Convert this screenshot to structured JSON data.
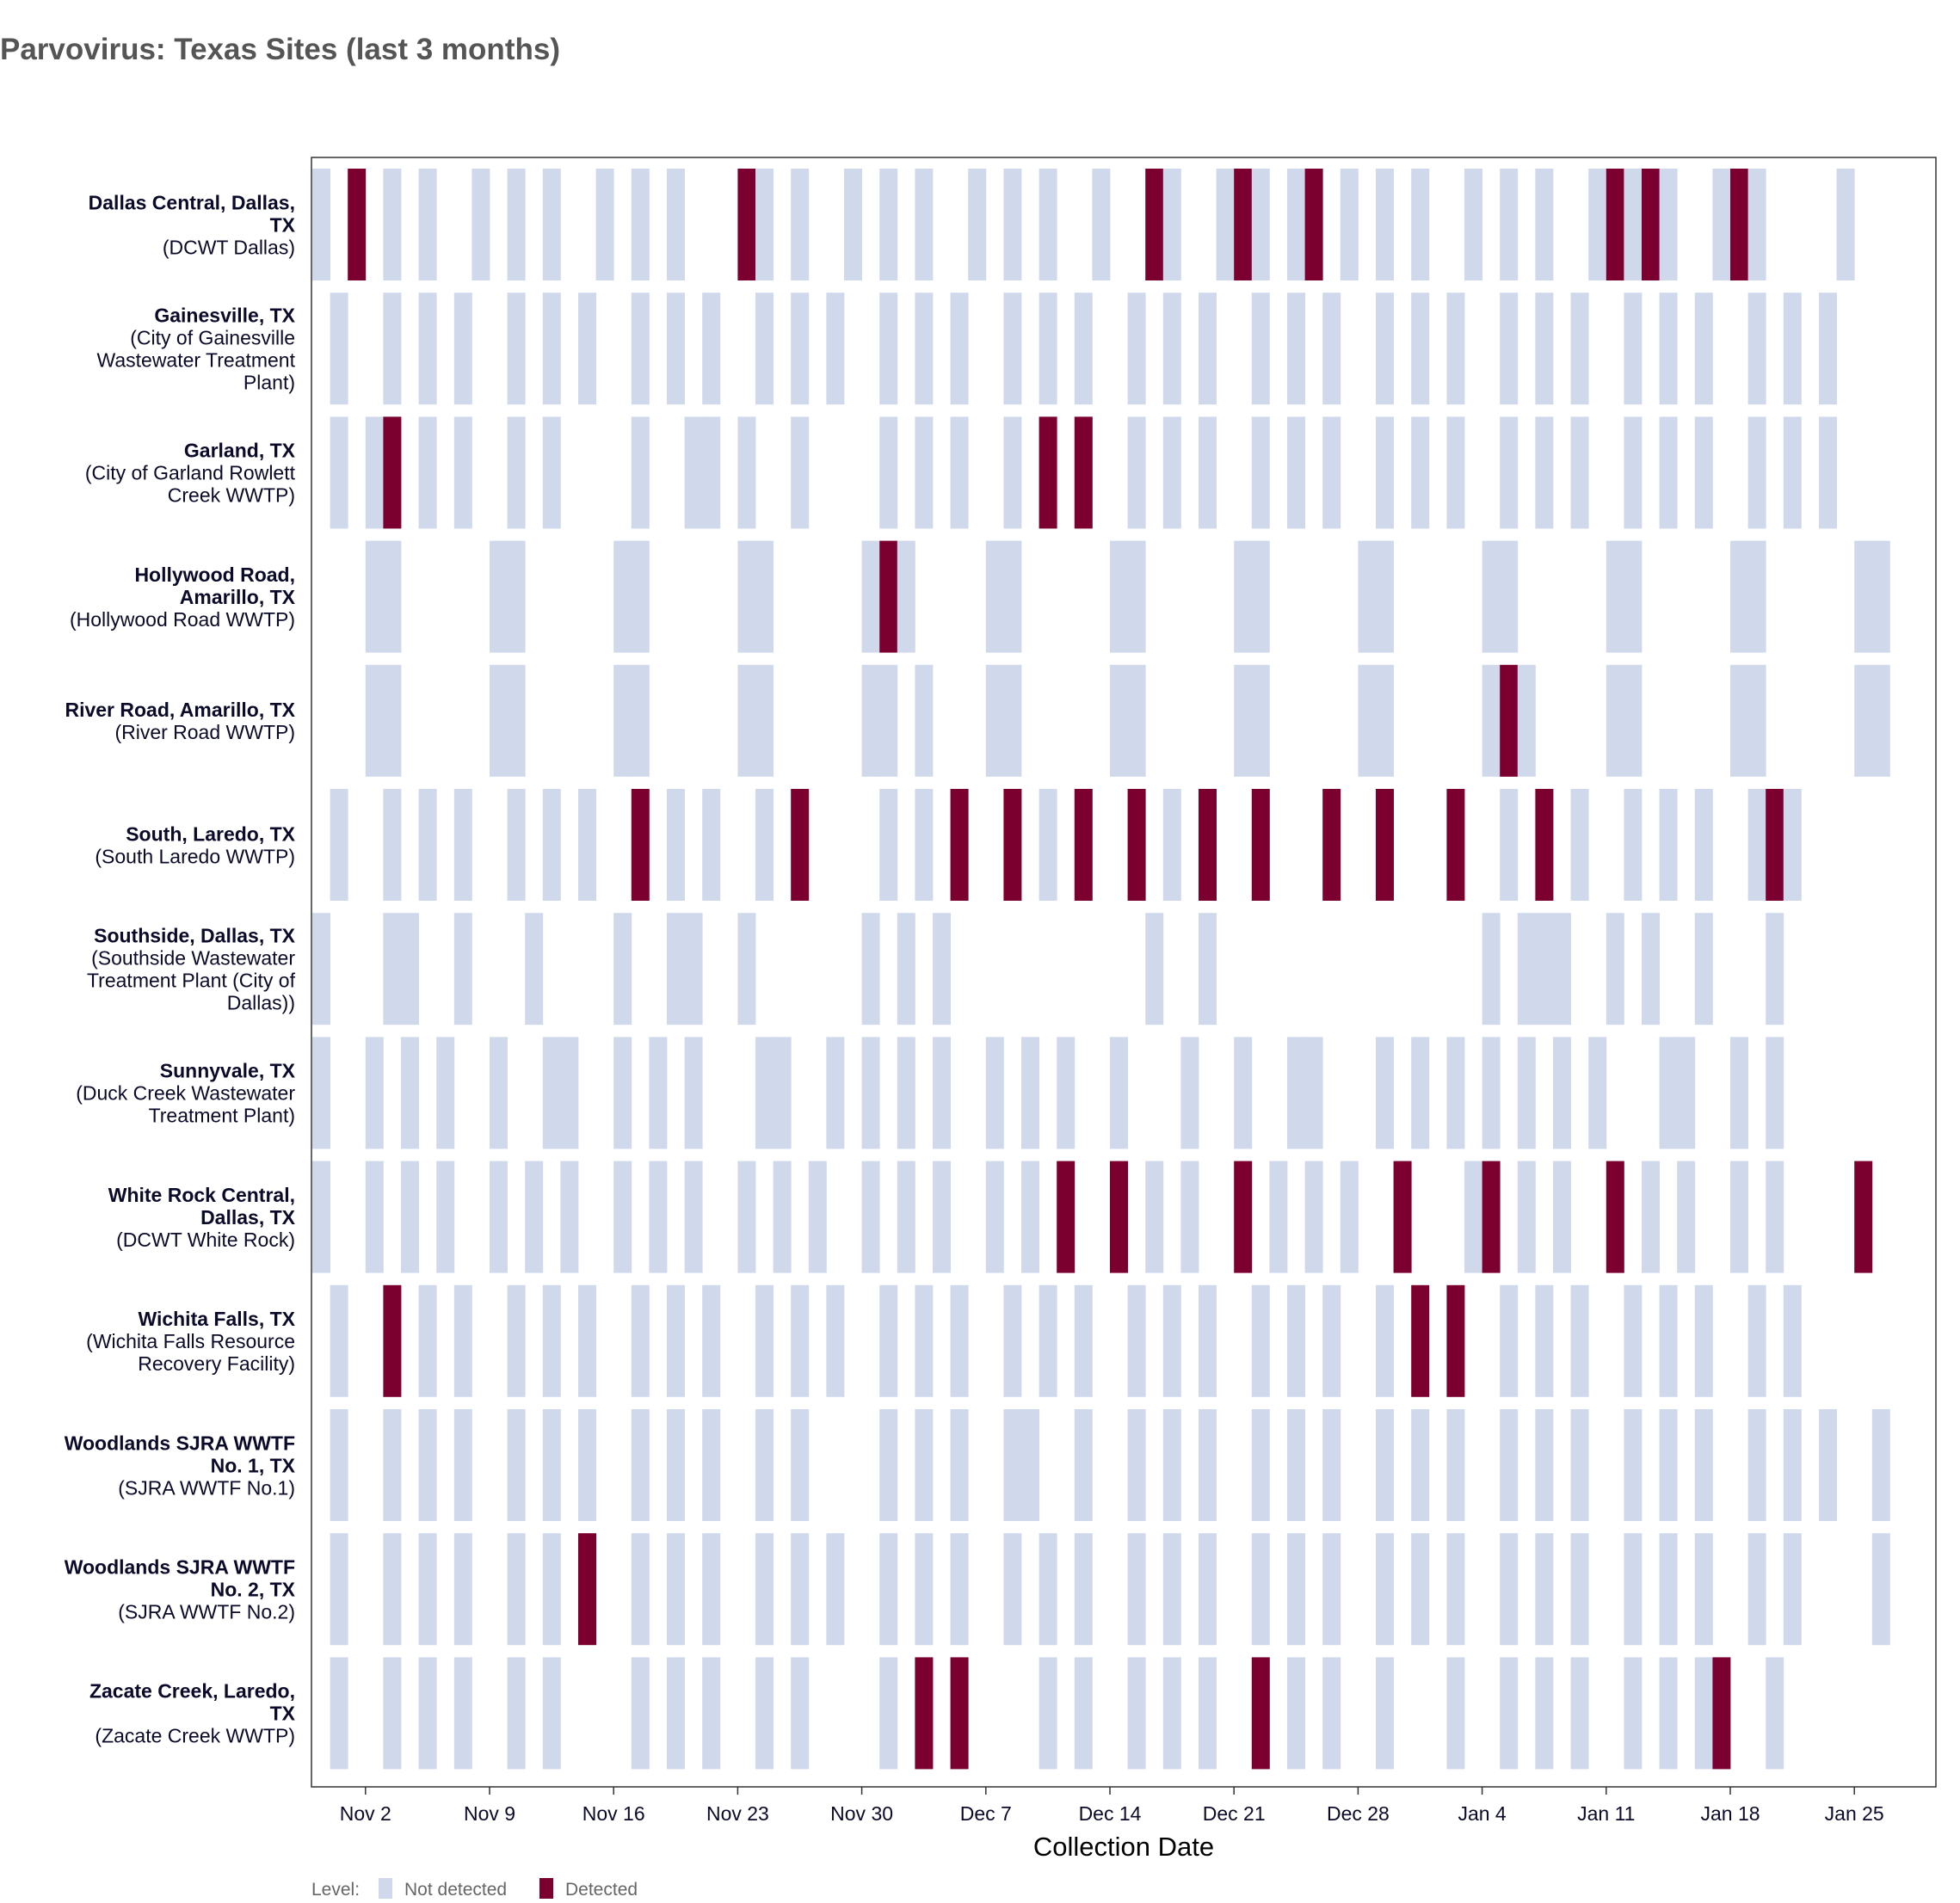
{
  "chart_data": {
    "type": "heatmap",
    "title": "Parvovirus: Texas Sites (last 3 months)",
    "xlabel": "Collection Date",
    "ylabel": "",
    "x_range": [
      "Oct 30",
      "Jan 27"
    ],
    "x_ticks": [
      "Nov 2",
      "Nov 9",
      "Nov 16",
      "Nov 23",
      "Nov 30",
      "Dec 7",
      "Dec 14",
      "Dec 21",
      "Dec 28",
      "Jan 4",
      "Jan 11",
      "Jan 18",
      "Jan 25"
    ],
    "legend": {
      "title": "Level:",
      "position": "bottom-left",
      "items": [
        {
          "label": "Not detected",
          "color": "#d0d8ec"
        },
        {
          "label": "Detected",
          "color": "#7b0030"
        }
      ]
    },
    "series": [
      {
        "name": "Dallas Central, Dallas, TX",
        "name_lines": [
          "Dallas Central, Dallas,",
          "TX"
        ],
        "plant_lines": [
          "(DCWT Dallas)"
        ],
        "days": [
          0,
          2,
          4,
          6,
          9,
          11,
          13,
          16,
          18,
          20,
          25,
          27,
          30,
          32,
          34,
          37,
          39,
          41,
          44,
          48,
          51,
          53,
          55,
          58,
          60,
          62,
          65,
          67,
          69,
          72,
          74,
          76,
          79,
          81,
          86
        ],
        "detected": [
          2,
          24,
          47,
          52,
          56,
          73,
          75,
          80
        ]
      },
      {
        "name": "Gainesville, TX",
        "name_lines": [
          "Gainesville, TX"
        ],
        "plant_lines": [
          "(City of Gainesville",
          "Wastewater Treatment",
          "Plant)"
        ],
        "days": [
          1,
          4,
          6,
          8,
          11,
          13,
          15,
          18,
          20,
          22,
          25,
          27,
          29,
          32,
          34,
          36,
          39,
          41,
          43,
          46,
          48,
          50,
          53,
          55,
          57,
          60,
          62,
          64,
          67,
          69,
          71,
          74,
          76,
          78,
          81,
          83,
          85
        ],
        "detected": []
      },
      {
        "name": "Garland, TX",
        "name_lines": [
          "Garland, TX"
        ],
        "plant_lines": [
          "(City of Garland Rowlett",
          "Creek WWTP)"
        ],
        "days": [
          1,
          3,
          6,
          8,
          11,
          13,
          18,
          21,
          22,
          24,
          27,
          32,
          34,
          36,
          39,
          41,
          43,
          46,
          48,
          50,
          53,
          55,
          57,
          60,
          62,
          64,
          67,
          69,
          71,
          74,
          76,
          78,
          81,
          83,
          85
        ],
        "detected": [
          4,
          41,
          43
        ]
      },
      {
        "name": "Hollywood Road, Amarillo, TX",
        "name_lines": [
          "Hollywood Road,",
          "Amarillo, TX"
        ],
        "plant_lines": [
          "(Hollywood Road WWTP)"
        ],
        "days": [
          3,
          4,
          10,
          11,
          17,
          18,
          24,
          25,
          31,
          33,
          38,
          39,
          45,
          46,
          52,
          53,
          59,
          60,
          66,
          67,
          73,
          74,
          80,
          81,
          87,
          88
        ],
        "detected": [
          32
        ]
      },
      {
        "name": "River Road, Amarillo, TX",
        "name_lines": [
          "River Road, Amarillo, TX"
        ],
        "plant_lines": [
          "(River Road WWTP)"
        ],
        "days": [
          3,
          4,
          10,
          11,
          17,
          18,
          24,
          25,
          31,
          32,
          34,
          38,
          39,
          45,
          46,
          52,
          53,
          59,
          60,
          66,
          68,
          73,
          74,
          80,
          81,
          87,
          88
        ],
        "detected": [
          67
        ]
      },
      {
        "name": "South, Laredo, TX",
        "name_lines": [
          "South, Laredo, TX"
        ],
        "plant_lines": [
          "(South Laredo WWTP)"
        ],
        "days": [
          1,
          4,
          6,
          8,
          11,
          13,
          15,
          20,
          22,
          25,
          32,
          34,
          41,
          46,
          48,
          50,
          53,
          60,
          67,
          71,
          74,
          76,
          78,
          81,
          83
        ],
        "detected": [
          18,
          27,
          36,
          39,
          43,
          46,
          50,
          53,
          57,
          60,
          64,
          69,
          82
        ]
      },
      {
        "name": "Southside, Dallas, TX",
        "name_lines": [
          "Southside, Dallas, TX"
        ],
        "plant_lines": [
          "(Southside Wastewater",
          "Treatment Plant (City of",
          "Dallas))"
        ],
        "days": [
          0,
          4,
          5,
          8,
          12,
          17,
          20,
          21,
          24,
          31,
          33,
          35,
          47,
          50,
          66,
          68,
          69,
          70,
          73,
          75,
          78,
          82
        ],
        "detected": []
      },
      {
        "name": "Sunnyvale, TX",
        "name_lines": [
          "Sunnyvale, TX"
        ],
        "plant_lines": [
          "(Duck Creek Wastewater",
          "Treatment Plant)"
        ],
        "days": [
          0,
          3,
          5,
          7,
          10,
          13,
          14,
          17,
          19,
          21,
          25,
          26,
          29,
          31,
          33,
          35,
          38,
          40,
          42,
          45,
          49,
          52,
          55,
          56,
          60,
          62,
          64,
          66,
          68,
          70,
          72,
          76,
          77,
          80,
          82
        ],
        "detected": []
      },
      {
        "name": "White Rock Central, Dallas, TX",
        "name_lines": [
          "White Rock Central,",
          "Dallas, TX"
        ],
        "plant_lines": [
          "(DCWT White Rock)"
        ],
        "days": [
          0,
          3,
          5,
          7,
          10,
          12,
          14,
          17,
          19,
          21,
          24,
          26,
          28,
          31,
          33,
          35,
          38,
          40,
          45,
          47,
          49,
          54,
          56,
          58,
          61,
          65,
          68,
          70,
          75,
          77,
          80,
          82
        ],
        "detected": [
          42,
          45,
          52,
          61,
          66,
          73,
          87
        ]
      },
      {
        "name": "Wichita Falls, TX",
        "name_lines": [
          "Wichita Falls, TX"
        ],
        "plant_lines": [
          "(Wichita Falls Resource",
          "Recovery Facility)"
        ],
        "days": [
          1,
          6,
          8,
          11,
          13,
          15,
          18,
          20,
          22,
          25,
          27,
          29,
          32,
          34,
          36,
          39,
          41,
          43,
          46,
          48,
          50,
          53,
          55,
          57,
          60,
          62,
          67,
          69,
          71,
          74,
          76,
          78,
          81,
          83
        ],
        "detected": [
          4,
          62,
          64
        ]
      },
      {
        "name": "Woodlands SJRA WWTF No. 1, TX",
        "name_lines": [
          "Woodlands SJRA WWTF",
          "No. 1, TX"
        ],
        "plant_lines": [
          "(SJRA WWTF No.1)"
        ],
        "days": [
          1,
          4,
          6,
          8,
          11,
          13,
          15,
          18,
          20,
          22,
          25,
          27,
          32,
          34,
          36,
          39,
          40,
          43,
          46,
          48,
          50,
          53,
          55,
          57,
          60,
          62,
          64,
          67,
          69,
          71,
          74,
          76,
          78,
          81,
          83,
          85,
          88
        ],
        "detected": []
      },
      {
        "name": "Woodlands SJRA WWTF No. 2, TX",
        "name_lines": [
          "Woodlands SJRA WWTF",
          "No. 2, TX"
        ],
        "plant_lines": [
          "(SJRA WWTF No.2)"
        ],
        "days": [
          1,
          4,
          6,
          8,
          11,
          13,
          18,
          20,
          22,
          25,
          27,
          29,
          32,
          34,
          36,
          39,
          41,
          43,
          46,
          48,
          50,
          53,
          55,
          57,
          60,
          62,
          64,
          67,
          69,
          71,
          74,
          76,
          78,
          81,
          83,
          88
        ],
        "detected": [
          15
        ]
      },
      {
        "name": "Zacate Creek, Laredo, TX",
        "name_lines": [
          "Zacate Creek, Laredo,",
          "TX"
        ],
        "plant_lines": [
          "(Zacate Creek WWTP)"
        ],
        "days": [
          1,
          4,
          6,
          8,
          11,
          13,
          18,
          20,
          22,
          25,
          27,
          32,
          41,
          43,
          46,
          48,
          50,
          55,
          57,
          60,
          64,
          67,
          69,
          71,
          74,
          76,
          78,
          82
        ],
        "detected": [
          34,
          36,
          53,
          79
        ]
      }
    ]
  }
}
